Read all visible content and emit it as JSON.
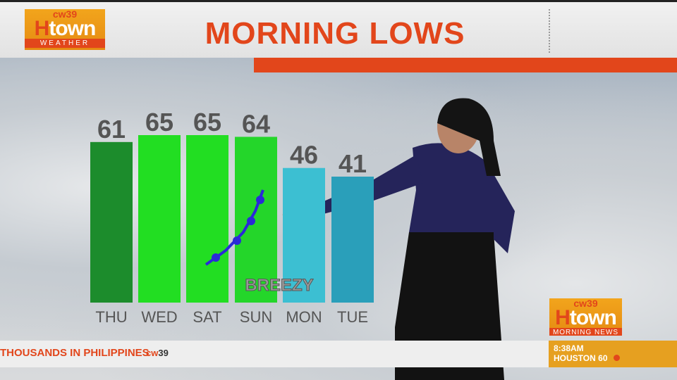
{
  "header": {
    "title": "MORNING LOWS",
    "logo": {
      "network": "cw39",
      "brand": "Htown",
      "sub": "WEATHER"
    }
  },
  "chart_data": {
    "type": "bar",
    "title": "MORNING LOWS",
    "categories": [
      "THU",
      "WED",
      "SAT",
      "SUN",
      "MON",
      "TUE"
    ],
    "values": [
      61,
      65,
      65,
      64,
      46,
      41
    ],
    "colors": [
      "#1c8c2c",
      "#22de22",
      "#22de22",
      "#24d62a",
      "#3cbfd2",
      "#2a9fba"
    ],
    "annotation": "BREEZY",
    "front": "warm front symbol"
  },
  "ticker": {
    "text": "THOUSANDS IN PHILIPPINES",
    "logo_cw": "cw",
    "logo_num": "39"
  },
  "corner_logo": {
    "network": "cw39",
    "brand": "Htown",
    "sub": "MORNING NEWS"
  },
  "clock": {
    "time": "8:38AM",
    "city": "HOUSTON",
    "temp": "60"
  },
  "colors": {
    "accent": "#e2461b",
    "gold": "#e6a020"
  }
}
